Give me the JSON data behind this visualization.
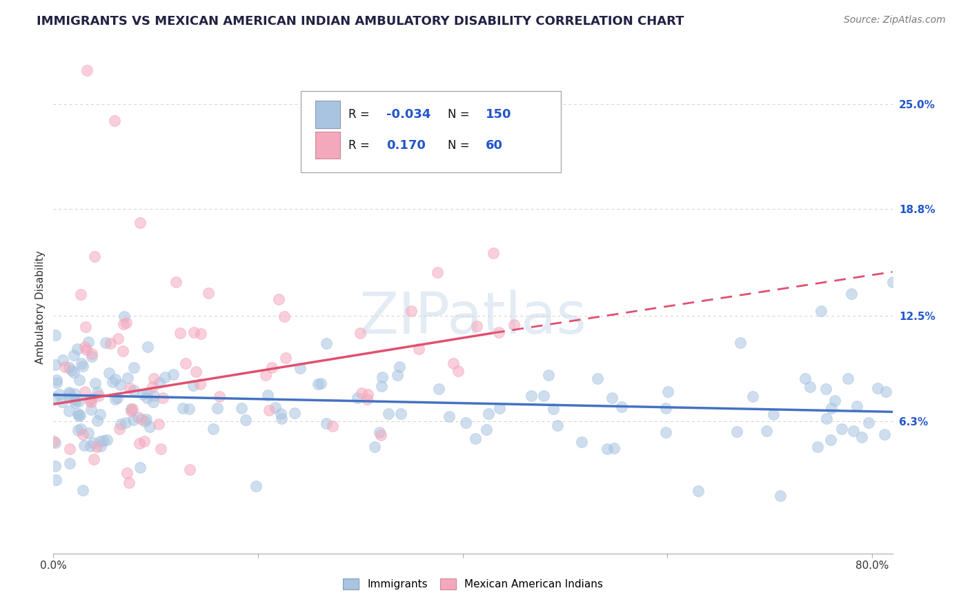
{
  "title": "IMMIGRANTS VS MEXICAN AMERICAN INDIAN AMBULATORY DISABILITY CORRELATION CHART",
  "source": "Source: ZipAtlas.com",
  "ylabel": "Ambulatory Disability",
  "xlim": [
    0.0,
    0.82
  ],
  "ylim": [
    -0.015,
    0.275
  ],
  "ytick_positions": [
    0.063,
    0.125,
    0.188,
    0.25
  ],
  "ytick_labels": [
    "6.3%",
    "12.5%",
    "18.8%",
    "25.0%"
  ],
  "background_color": "#ffffff",
  "grid_color": "#d0d0d0",
  "watermark_text": "ZIPatlas",
  "legend_R1": "-0.034",
  "legend_N1": "150",
  "legend_R2": "0.170",
  "legend_N2": "60",
  "immigrants_color": "#a8c4e0",
  "mexican_color": "#f4a8bc",
  "trendline_imm_color": "#4472c4",
  "trendline_mex_color": "#e05070",
  "title_fontsize": 13,
  "source_fontsize": 10,
  "axis_label_fontsize": 11,
  "tick_fontsize": 11,
  "watermark_fontsize": 60,
  "legend_color_blue": "#2255cc",
  "trendline_imm_x0": 0.0,
  "trendline_imm_y0": 0.0785,
  "trendline_imm_x1": 0.82,
  "trendline_imm_y1": 0.0685,
  "trendline_mex_solid_x0": 0.0,
  "trendline_mex_solid_y0": 0.073,
  "trendline_mex_solid_x1": 0.43,
  "trendline_mex_solid_y1": 0.115,
  "trendline_mex_dash_x0": 0.43,
  "trendline_mex_dash_y0": 0.115,
  "trendline_mex_dash_x1": 0.82,
  "trendline_mex_dash_y1": 0.151
}
